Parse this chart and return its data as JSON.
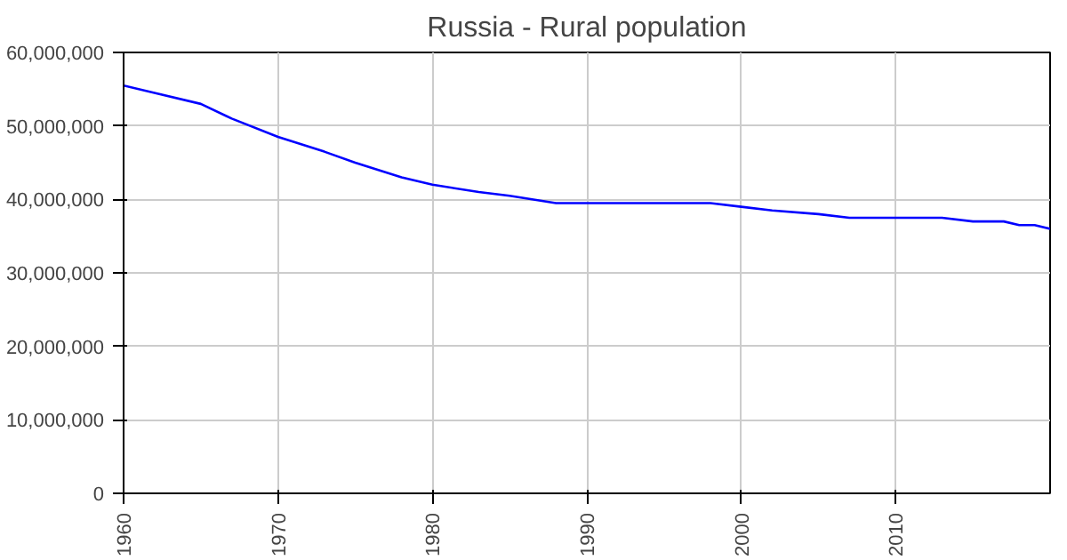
{
  "chart_data": {
    "type": "line",
    "title": "Russia - Rural population",
    "x": [
      1960,
      1962,
      1965,
      1967,
      1970,
      1973,
      1975,
      1978,
      1980,
      1983,
      1985,
      1988,
      1990,
      1993,
      1995,
      1998,
      2000,
      2002,
      2005,
      2007,
      2010,
      2013,
      2015,
      2017,
      2018,
      2019,
      2020
    ],
    "series": [
      {
        "color": "#0000ff",
        "values": [
          55500000,
          54500000,
          53000000,
          51000000,
          48500000,
          46500000,
          45000000,
          43000000,
          42000000,
          41000000,
          40500000,
          39500000,
          39500000,
          39500000,
          39500000,
          39500000,
          39000000,
          38500000,
          38000000,
          37500000,
          37500000,
          37500000,
          37000000,
          37000000,
          36500000,
          36500000,
          36000000
        ]
      }
    ],
    "xlim": [
      1960,
      2020
    ],
    "xticks": [
      1960,
      1970,
      1980,
      1990,
      2000,
      2010
    ],
    "ylim": [
      0,
      60000000
    ],
    "yticks": [
      {
        "value": 0,
        "label": "0"
      },
      {
        "value": 10000000,
        "label": "10,000,000"
      },
      {
        "value": 20000000,
        "label": "20,000,000"
      },
      {
        "value": 30000000,
        "label": "30,000,000"
      },
      {
        "value": 40000000,
        "label": "40,000,000"
      },
      {
        "value": 50000000,
        "label": "50,000,000"
      },
      {
        "value": 60000000,
        "label": "60,000,000"
      }
    ],
    "grid": true,
    "marker": "none",
    "line_style": "solid"
  }
}
